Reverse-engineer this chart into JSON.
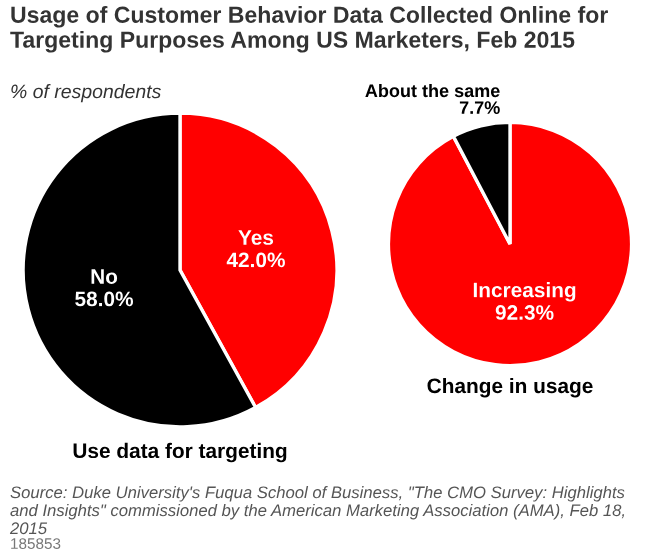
{
  "chart_data": [
    {
      "type": "pie",
      "title": "Usage of Customer Behavior Data Collected Online for Targeting Purposes Among US Marketers, Feb 2015",
      "subtitle": "% of respondents",
      "xlabel": "Use data for targeting",
      "categories": [
        "Yes",
        "No"
      ],
      "values": [
        42.0,
        58.0
      ],
      "colors": [
        "#ff0000",
        "#000000"
      ],
      "value_labels": [
        "42.0%",
        "58.0%"
      ],
      "annotations": [
        "Source: Duke University's Fuqua School of Business, \"The CMO Survey: Highlights and Insights\" commissioned by the American Marketing Association (AMA), Feb 18, 2015",
        "185853"
      ]
    },
    {
      "type": "pie",
      "xlabel": "Change in usage",
      "categories": [
        "Increasing",
        "About the same"
      ],
      "values": [
        92.3,
        7.7
      ],
      "colors": [
        "#ff0000",
        "#000000"
      ],
      "value_labels": [
        "92.3%",
        "7.7%"
      ]
    }
  ]
}
